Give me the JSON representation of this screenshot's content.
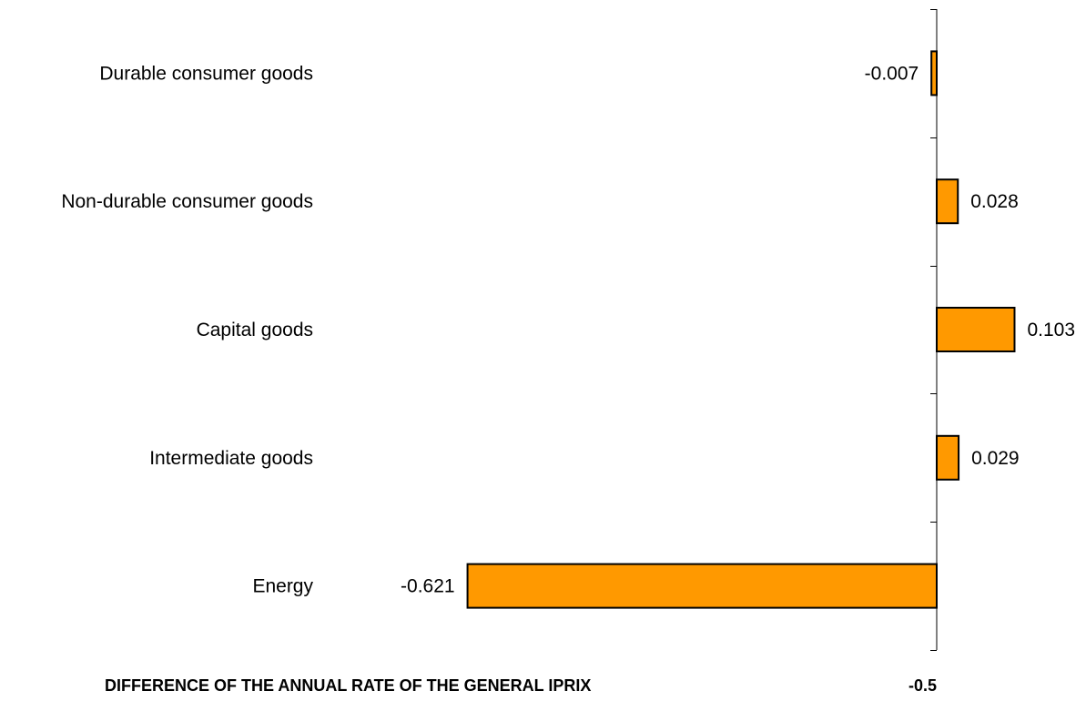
{
  "chart_data": {
    "type": "bar",
    "orientation": "horizontal",
    "categories": [
      "Durable consumer goods",
      "Non-durable consumer goods",
      "Capital goods",
      "Intermediate goods",
      "Energy"
    ],
    "values": [
      -0.007,
      0.028,
      0.103,
      0.029,
      -0.621
    ],
    "value_labels": [
      "-0.007",
      "0.028",
      "0.103",
      "0.029",
      "-0.621"
    ],
    "footer_left": "DIFFERENCE OF THE ANNUAL RATE OF THE GENERAL IPRIX",
    "footer_right": "-0.5",
    "bar_color": "#FF9900",
    "border_color": "#000000",
    "grid": false,
    "legend": "none"
  }
}
